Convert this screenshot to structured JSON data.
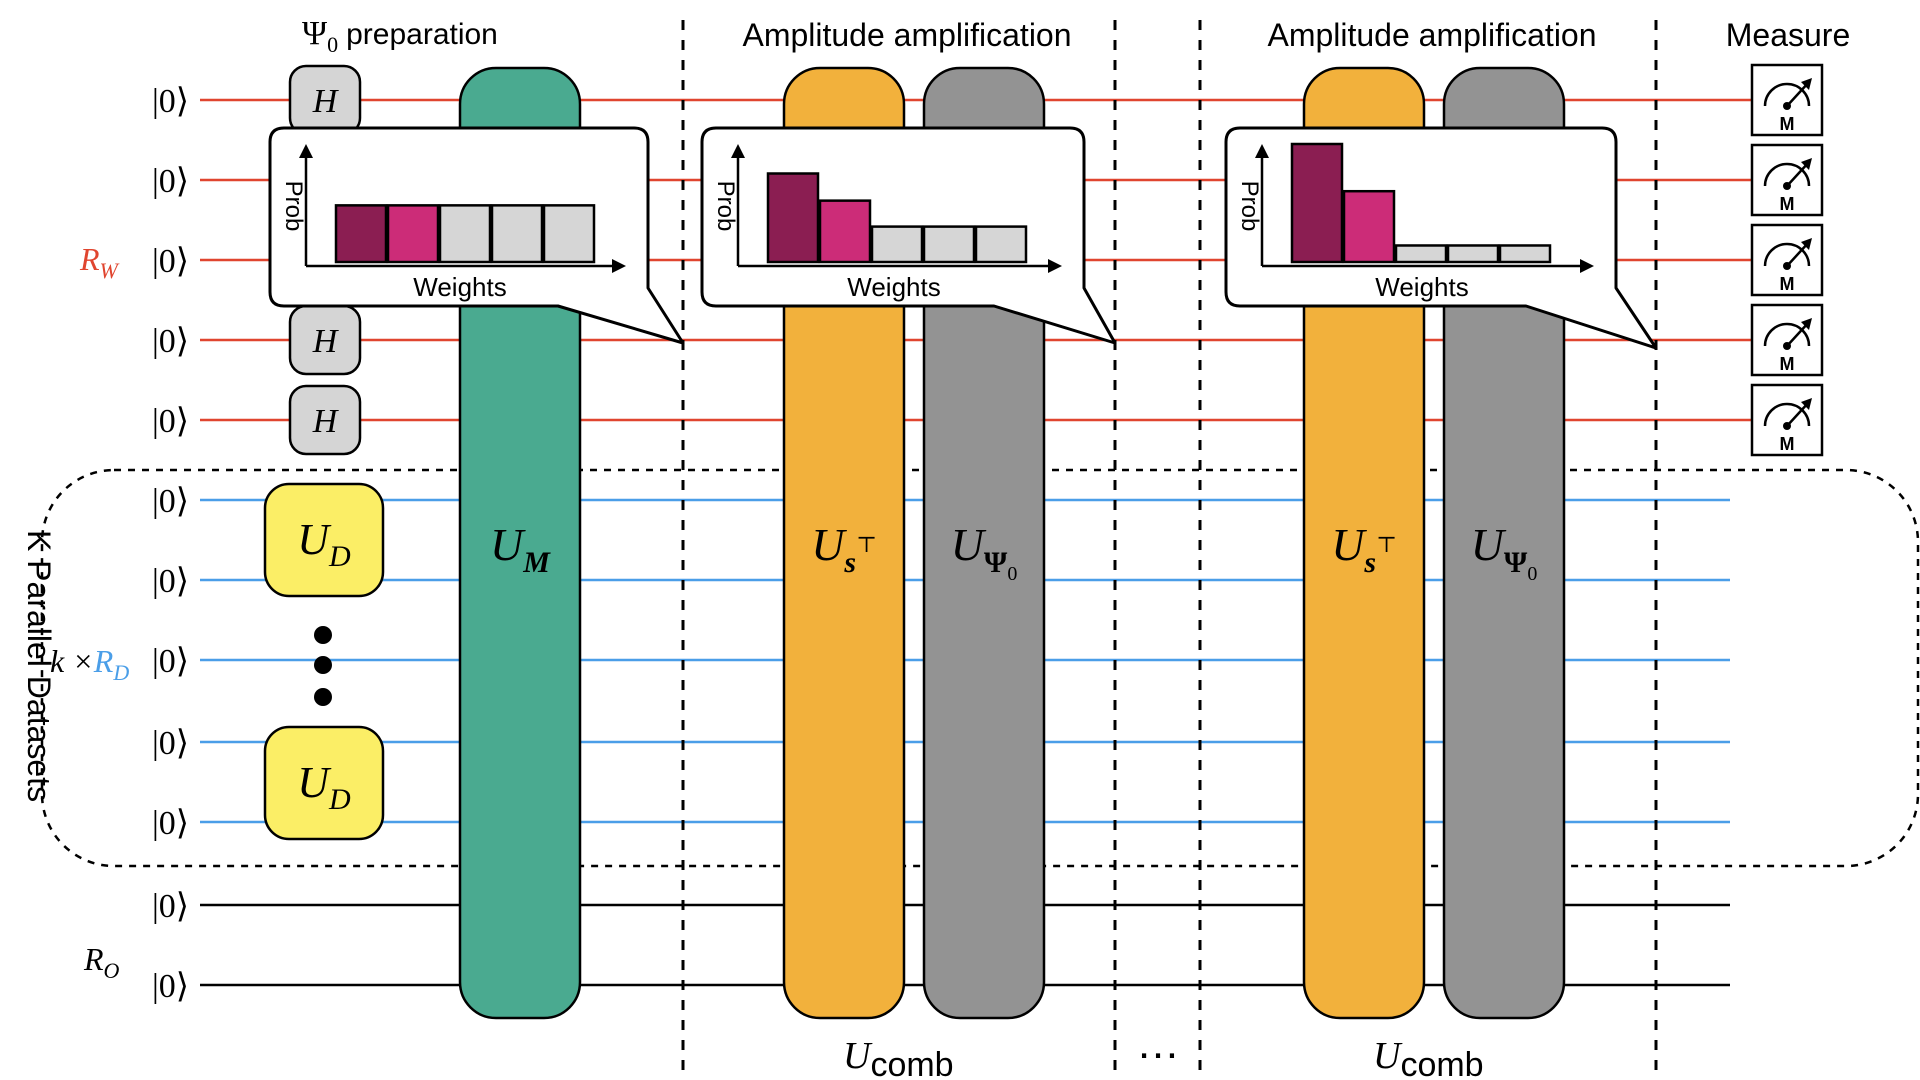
{
  "sections": {
    "psi_prep": {
      "symbol": "Ψ",
      "subscript": "0",
      "text": "preparation"
    },
    "amp1": "Amplitude amplification",
    "amp2": "Amplitude amplification",
    "measure": "Measure"
  },
  "ket": "|0⟩",
  "registers": {
    "rw": {
      "main": "R",
      "sub": "W",
      "color": "#e0452f"
    },
    "rd": {
      "prefix": "k ×",
      "main": "R",
      "sub": "D",
      "color": "#4a9ee8"
    },
    "ro": {
      "main": "R",
      "sub": "O",
      "color": "#000000"
    }
  },
  "parallel_label": "K Parallel Datasets",
  "gates": {
    "h": "H",
    "ud": {
      "main": "U",
      "sub": "D"
    },
    "um": {
      "main": "U",
      "sub": "M"
    },
    "us": {
      "main": "U",
      "sub": "s",
      "sup": "⊤"
    },
    "upsi": {
      "main": "U",
      "sub": "Ψ",
      "subsub": "0"
    },
    "meter": "M"
  },
  "ucomb": {
    "main": "U",
    "sub": "comb"
  },
  "ellipsis": "…",
  "histogram": {
    "ylabel": "Prob",
    "xlabel": "Weights",
    "colors": [
      "#8b1e52",
      "#cc2c78",
      "#d6d6d6",
      "#d6d6d6",
      "#d6d6d6"
    ],
    "panels": [
      {
        "values": [
          0.48,
          0.48,
          0.48,
          0.48,
          0.48
        ]
      },
      {
        "values": [
          0.75,
          0.52,
          0.3,
          0.3,
          0.3
        ]
      },
      {
        "values": [
          1.0,
          0.6,
          0.14,
          0.14,
          0.14
        ]
      }
    ]
  },
  "colors": {
    "um": "#4aaa90",
    "us": "#f2b13c",
    "upsi": "#939393",
    "ud": "#fbee66",
    "h": "#d5d5d5",
    "wire_w": "#e0452f",
    "wire_d": "#4a9ee8",
    "wire_o": "#000000"
  }
}
